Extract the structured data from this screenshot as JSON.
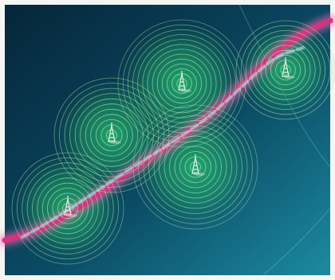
{
  "image": {
    "subject": "cellular-network-coverage-illustration",
    "colors": {
      "border": "#f4f6f3",
      "background_top": "#06263a",
      "background_mid": "#0a4a63",
      "background_bottom": "#1c8aa0",
      "ring": "#b9e6a6",
      "glow": "#28c774",
      "highway": "#d8327f",
      "highway_glow": "#ff5fb0",
      "road_overlay": "#8fd5d8",
      "tower": "#e9efe5"
    },
    "cells": [
      {
        "name": "cell-lower-left",
        "tower_count": 1
      },
      {
        "name": "cell-mid-left",
        "tower_count": 1
      },
      {
        "name": "cell-top-center",
        "tower_count": 1
      },
      {
        "name": "cell-lower-center",
        "tower_count": 1
      },
      {
        "name": "cell-top-right",
        "tower_count": 1
      }
    ]
  }
}
